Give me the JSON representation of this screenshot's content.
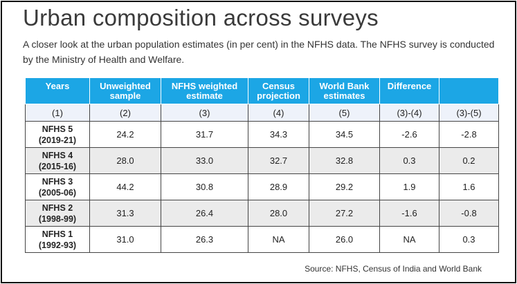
{
  "title": "Urban composition across surveys",
  "subtitle": "A closer look at the urban population estimates (in per cent) in the NFHS data. The NFHS survey is conducted by the Ministry of Health and Welfare.",
  "table": {
    "headers": [
      "Years",
      "Unweighted sample",
      "NFHS weighted estimate",
      "Census projection",
      "World Bank estimates",
      "Difference",
      ""
    ],
    "column_numbers": [
      "(1)",
      "(2)",
      "(3)",
      "(4)",
      "(5)",
      "(3)-(4)",
      "(3)-(5)"
    ],
    "rows": [
      {
        "year": "NFHS 5",
        "period": "(2019-21)",
        "cells": [
          "24.2",
          "31.7",
          "34.3",
          "34.5",
          "-2.6",
          "-2.8"
        ]
      },
      {
        "year": "NFHS 4",
        "period": "(2015-16)",
        "cells": [
          "28.0",
          "33.0",
          "32.7",
          "32.8",
          "0.3",
          "0.2"
        ]
      },
      {
        "year": "NFHS 3",
        "period": "(2005-06)",
        "cells": [
          "44.2",
          "30.8",
          "28.9",
          "29.2",
          "1.9",
          "1.6"
        ]
      },
      {
        "year": "NFHS 2",
        "period": "(1998-99)",
        "cells": [
          "31.3",
          "26.4",
          "28.0",
          "27.2",
          "-1.6",
          "-0.8"
        ]
      },
      {
        "year": "NFHS 1",
        "period": "(1992-93)",
        "cells": [
          "31.0",
          "26.3",
          "NA",
          "26.0",
          "NA",
          "0.3"
        ]
      }
    ]
  },
  "source": "Source: NFHS, Census of India and World Bank",
  "colors": {
    "header_bg": "#1ca6e5",
    "subheader_bg": "#eef2fa",
    "alt_row_bg": "#ebebeb"
  }
}
